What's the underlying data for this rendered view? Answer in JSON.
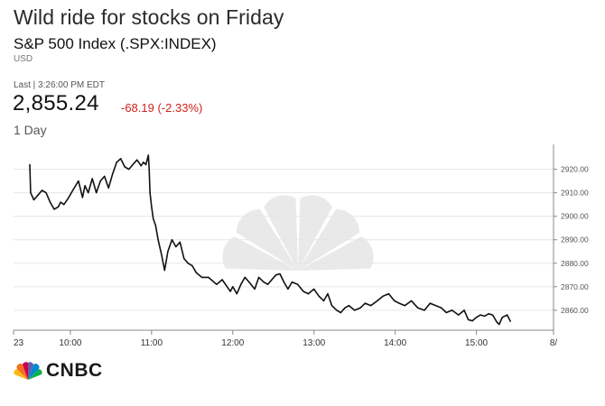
{
  "header": {
    "headline": "Wild ride for stocks on Friday",
    "instrument": "S&P 500 Index (.SPX:INDEX)",
    "currency": "USD",
    "last_label": "Last | 3:26:00 PM EDT",
    "price": "2,855.24",
    "change": "-68.19 (-2.33%)",
    "period": "1 Day"
  },
  "brand": {
    "name": "CNBC"
  },
  "colors": {
    "line": "#111111",
    "negative": "#d0211b",
    "grid": "#e6e6e6",
    "axis": "#888888",
    "watermark": "#e9e9e9"
  },
  "chart_data": {
    "type": "line",
    "title": "",
    "xlabel": "",
    "ylabel": "",
    "x_ticks": [
      {
        "t": 9.3,
        "label": "23"
      },
      {
        "t": 10.0,
        "label": "10:00"
      },
      {
        "t": 11.0,
        "label": "11:00"
      },
      {
        "t": 12.0,
        "label": "12:00"
      },
      {
        "t": 13.0,
        "label": "13:00"
      },
      {
        "t": 14.0,
        "label": "14:00"
      },
      {
        "t": 15.0,
        "label": "15:00"
      },
      {
        "t": 15.95,
        "label": "8/"
      }
    ],
    "y_ticks": [
      2860,
      2870,
      2880,
      2890,
      2900,
      2910,
      2920
    ],
    "y_tick_labels": [
      "2860.00",
      "2870.00",
      "2880.00",
      "2890.00",
      "2900.00",
      "2910.00",
      "2920.00"
    ],
    "xlim": [
      9.3,
      15.95
    ],
    "ylim": [
      2851.5,
      2930.6
    ],
    "grid": true,
    "series": [
      {
        "x": [
          9.5,
          9.51,
          9.55,
          9.6,
          9.65,
          9.7,
          9.75,
          9.8,
          9.85,
          9.88,
          9.92,
          9.98,
          10.03,
          10.1,
          10.15,
          10.18,
          10.22,
          10.27,
          10.32,
          10.37,
          10.42,
          10.47,
          10.52,
          10.57,
          10.62,
          10.67,
          10.72,
          10.77,
          10.82,
          10.87,
          10.9,
          10.93,
          10.96,
          10.97,
          10.98,
          11.0,
          11.02,
          11.05,
          11.08,
          11.12,
          11.16,
          11.2,
          11.25,
          11.3,
          11.35,
          11.4,
          11.45,
          11.5,
          11.55,
          11.62,
          11.7,
          11.8,
          11.87,
          11.93,
          11.97,
          12.0,
          12.05,
          12.1,
          12.15,
          12.2,
          12.27,
          12.32,
          12.38,
          12.43,
          12.48,
          12.53,
          12.58,
          12.63,
          12.68,
          12.73,
          12.8,
          12.87,
          12.93,
          13.0,
          13.06,
          13.12,
          13.17,
          13.22,
          13.28,
          13.33,
          13.38,
          13.43,
          13.5,
          13.57,
          13.63,
          13.7,
          13.78,
          13.85,
          13.92,
          13.99,
          14.05,
          14.12,
          14.2,
          14.28,
          14.36,
          14.43,
          14.5,
          14.57,
          14.63,
          14.7,
          14.78,
          14.85,
          14.9,
          14.95,
          15.0,
          15.05,
          15.1,
          15.15,
          15.2,
          15.25,
          15.28,
          15.32,
          15.38,
          15.42
        ],
        "y": [
          2922.0,
          2910.0,
          2907.0,
          2909.0,
          2911.0,
          2910.0,
          2906.0,
          2903.0,
          2904.0,
          2906.0,
          2905.0,
          2908.0,
          2911.0,
          2915.0,
          2908.0,
          2913.0,
          2910.0,
          2916.0,
          2910.0,
          2915.0,
          2917.0,
          2912.0,
          2918.0,
          2923.0,
          2924.5,
          2921.0,
          2920.0,
          2922.0,
          2924.0,
          2921.5,
          2923.0,
          2922.0,
          2926.0,
          2920.0,
          2910.0,
          2904.0,
          2899.0,
          2896.0,
          2890.0,
          2884.0,
          2877.0,
          2885.0,
          2890.0,
          2887.0,
          2889.0,
          2882.0,
          2880.0,
          2879.0,
          2876.0,
          2874.0,
          2874.0,
          2871.0,
          2873.0,
          2870.0,
          2868.0,
          2870.0,
          2867.0,
          2871.0,
          2874.0,
          2872.0,
          2869.0,
          2874.0,
          2872.0,
          2871.0,
          2873.0,
          2875.0,
          2875.5,
          2872.0,
          2869.0,
          2872.0,
          2871.0,
          2868.0,
          2867.0,
          2869.0,
          2866.0,
          2864.0,
          2867.0,
          2862.0,
          2860.0,
          2859.0,
          2861.0,
          2862.0,
          2860.0,
          2861.0,
          2863.0,
          2862.0,
          2864.0,
          2866.0,
          2867.0,
          2864.0,
          2863.0,
          2862.0,
          2864.0,
          2861.0,
          2860.0,
          2863.0,
          2862.0,
          2861.0,
          2859.0,
          2860.0,
          2858.0,
          2860.0,
          2856.0,
          2855.5,
          2857.0,
          2858.0,
          2857.5,
          2858.5,
          2858.0,
          2855.0,
          2854.0,
          2857.0,
          2858.0,
          2855.24
        ]
      }
    ]
  }
}
